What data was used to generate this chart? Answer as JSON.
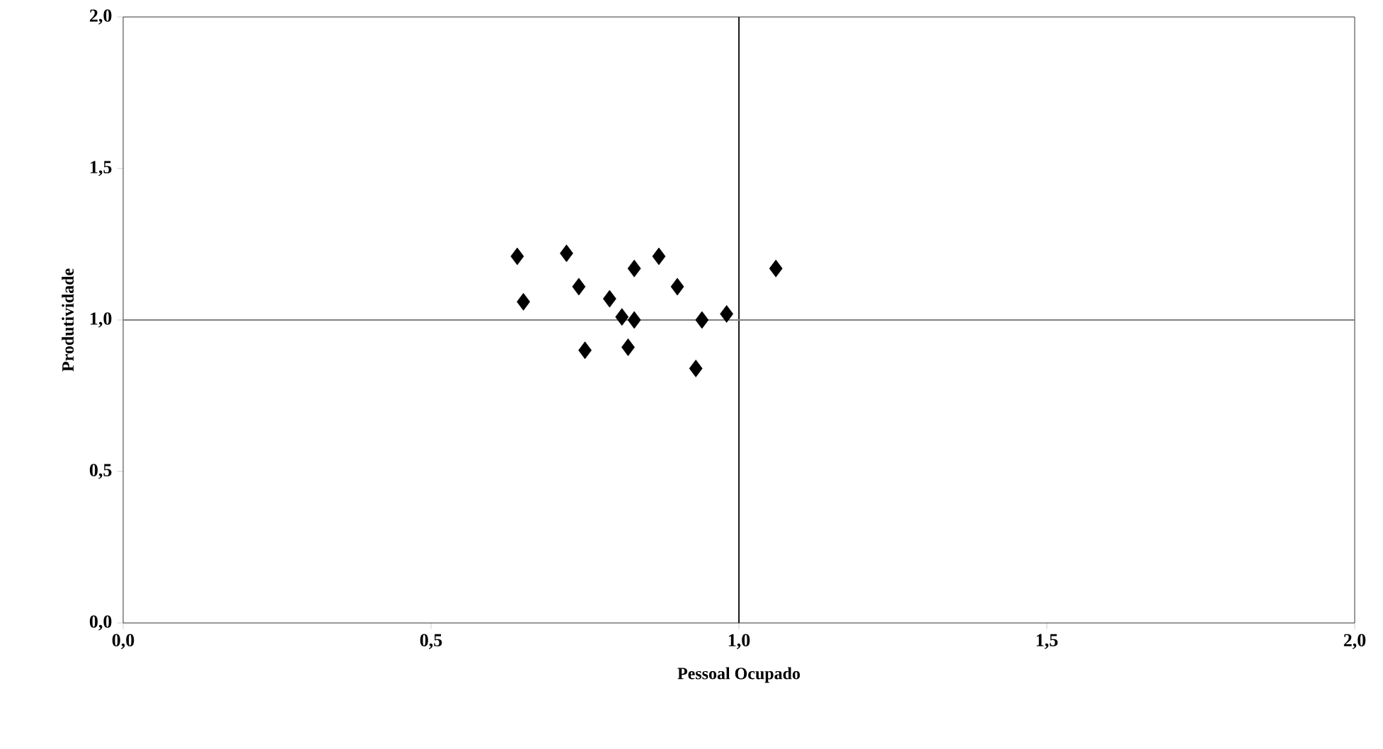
{
  "chart_data": {
    "type": "scatter",
    "xlabel": "Pessoal Ocupado",
    "ylabel": "Produtividade",
    "marker": "diamond",
    "grid": false,
    "xlim": [
      0,
      2
    ],
    "ylim": [
      0,
      2
    ],
    "xticks": [
      {
        "value": 0,
        "label": "0,0"
      },
      {
        "value": 0.5,
        "label": "0,5"
      },
      {
        "value": 1,
        "label": "1,0"
      },
      {
        "value": 1.5,
        "label": "1,5"
      },
      {
        "value": 2,
        "label": "2,0"
      }
    ],
    "yticks": [
      {
        "value": 0,
        "label": "0,0"
      },
      {
        "value": 0.5,
        "label": "0,5"
      },
      {
        "value": 1,
        "label": "1,0"
      },
      {
        "value": 1.5,
        "label": "1,5"
      },
      {
        "value": 2,
        "label": "2,0"
      }
    ],
    "ref_lines": [
      {
        "axis": "x",
        "value": 1,
        "color": "#000000"
      },
      {
        "axis": "y",
        "value": 1,
        "color": "#808080"
      }
    ],
    "series": [
      {
        "color": "#000000",
        "x": [
          0.64,
          0.72,
          0.65,
          0.74,
          0.79,
          0.83,
          0.87,
          0.9,
          0.81,
          0.83,
          0.94,
          0.98,
          1.06,
          0.75,
          0.82,
          0.93
        ],
        "values": [
          1.21,
          1.22,
          1.06,
          1.11,
          1.07,
          1.17,
          1.21,
          1.11,
          1.01,
          1.0,
          1.0,
          1.02,
          1.17,
          0.9,
          0.91,
          0.84
        ]
      }
    ]
  }
}
